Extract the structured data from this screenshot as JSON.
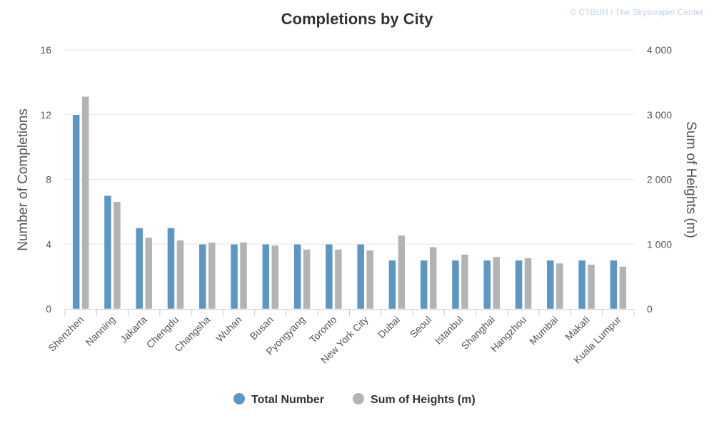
{
  "chart_data": {
    "type": "bar",
    "title": "Completions by City",
    "credit": "© CTBUH / The Skyscraper Center",
    "categories": [
      "Shenzhen",
      "Nanning",
      "Jakarta",
      "Chengdu",
      "Changsha",
      "Wuhan",
      "Busan",
      "Pyongyang",
      "Toronto",
      "New York City",
      "Dubai",
      "Seoul",
      "Istanbul",
      "Shanghai",
      "Hangzhou",
      "Mumbai",
      "Makati",
      "Kuala Lumpur"
    ],
    "series": [
      {
        "name": "Total Number",
        "axis": "left",
        "color": "#5b97c5",
        "values": [
          12,
          7,
          5,
          5,
          4,
          4,
          4,
          4,
          4,
          4,
          3,
          3,
          3,
          3,
          3,
          3,
          3,
          3
        ]
      },
      {
        "name": "Sum of Heights (m)",
        "axis": "right",
        "color": "#b3b3b3",
        "values": [
          3280,
          1655,
          1100,
          1060,
          1025,
          1030,
          980,
          920,
          920,
          905,
          1135,
          955,
          840,
          805,
          785,
          705,
          685,
          655
        ]
      }
    ],
    "ylabel_left": "Number of Completions",
    "ylabel_right": "Sum of Heights (m)",
    "ylim_left": [
      0,
      16
    ],
    "ylim_right": [
      0,
      4000
    ],
    "yticks_left": [
      "0",
      "4",
      "8",
      "12",
      "16"
    ],
    "yticks_right": [
      "0",
      "1 000",
      "2 000",
      "3 000",
      "4 000"
    ],
    "grid": true,
    "legend": "bottom-center"
  }
}
